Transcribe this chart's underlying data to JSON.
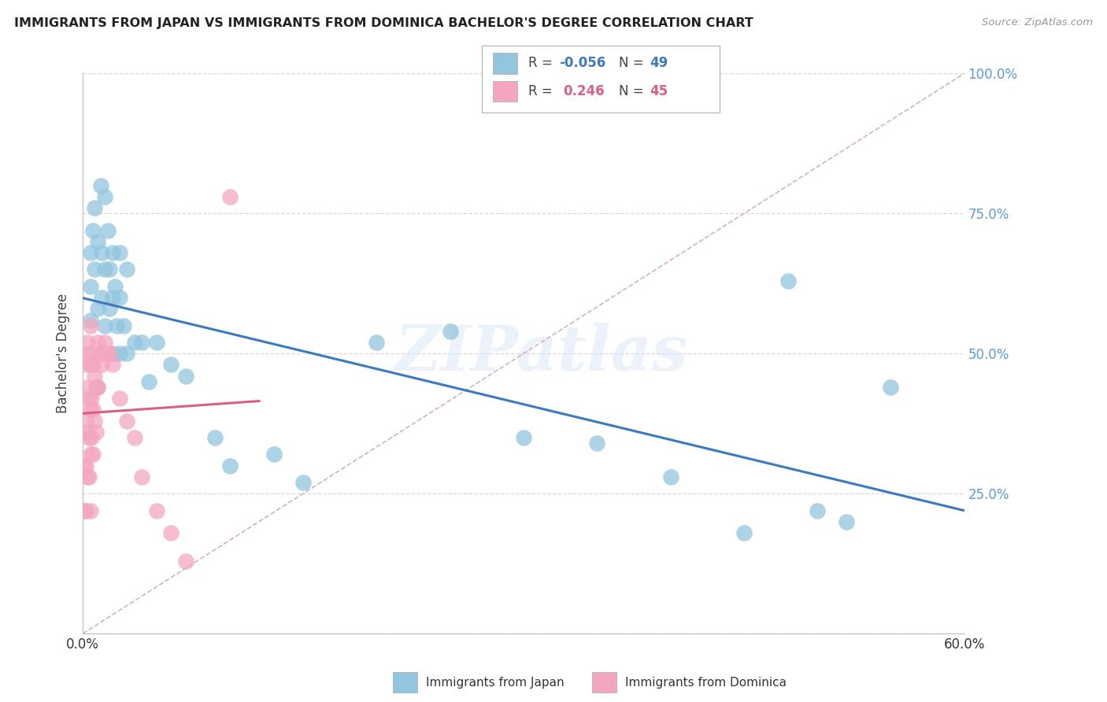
{
  "title": "IMMIGRANTS FROM JAPAN VS IMMIGRANTS FROM DOMINICA BACHELOR'S DEGREE CORRELATION CHART",
  "source": "Source: ZipAtlas.com",
  "ylabel": "Bachelor's Degree",
  "xlim": [
    0,
    0.6
  ],
  "ylim": [
    0,
    1.0
  ],
  "legend_japan_R": "-0.056",
  "legend_japan_N": "49",
  "legend_dominica_R": "0.246",
  "legend_dominica_N": "45",
  "japan_color": "#92c5de",
  "dominica_color": "#f4a6bf",
  "japan_line_color": "#3a7abf",
  "dominica_line_color": "#d95f8a",
  "diagonal_color": "#d8b0b8",
  "watermark": "ZIPatlas",
  "japan_x": [
    0.005,
    0.005,
    0.005,
    0.007,
    0.008,
    0.008,
    0.01,
    0.01,
    0.01,
    0.012,
    0.013,
    0.013,
    0.015,
    0.015,
    0.015,
    0.017,
    0.018,
    0.018,
    0.02,
    0.02,
    0.02,
    0.022,
    0.023,
    0.025,
    0.025,
    0.025,
    0.028,
    0.03,
    0.03,
    0.035,
    0.04,
    0.045,
    0.05,
    0.06,
    0.07,
    0.09,
    0.1,
    0.13,
    0.15,
    0.2,
    0.25,
    0.3,
    0.35,
    0.4,
    0.5,
    0.52,
    0.55,
    0.48,
    0.45
  ],
  "japan_y": [
    0.68,
    0.62,
    0.56,
    0.72,
    0.76,
    0.65,
    0.7,
    0.58,
    0.44,
    0.8,
    0.68,
    0.6,
    0.78,
    0.65,
    0.55,
    0.72,
    0.65,
    0.58,
    0.68,
    0.6,
    0.5,
    0.62,
    0.55,
    0.68,
    0.6,
    0.5,
    0.55,
    0.65,
    0.5,
    0.52,
    0.52,
    0.45,
    0.52,
    0.48,
    0.46,
    0.35,
    0.3,
    0.32,
    0.27,
    0.52,
    0.54,
    0.35,
    0.34,
    0.28,
    0.22,
    0.2,
    0.44,
    0.63,
    0.18
  ],
  "dominica_x": [
    0.001,
    0.001,
    0.002,
    0.002,
    0.002,
    0.002,
    0.003,
    0.003,
    0.003,
    0.003,
    0.004,
    0.004,
    0.004,
    0.004,
    0.005,
    0.005,
    0.005,
    0.005,
    0.005,
    0.006,
    0.006,
    0.006,
    0.007,
    0.007,
    0.007,
    0.008,
    0.008,
    0.009,
    0.009,
    0.01,
    0.01,
    0.012,
    0.013,
    0.015,
    0.016,
    0.018,
    0.02,
    0.025,
    0.03,
    0.035,
    0.04,
    0.05,
    0.06,
    0.07,
    0.1
  ],
  "dominica_y": [
    0.3,
    0.22,
    0.48,
    0.38,
    0.3,
    0.22,
    0.52,
    0.44,
    0.36,
    0.28,
    0.5,
    0.42,
    0.35,
    0.28,
    0.55,
    0.48,
    0.4,
    0.32,
    0.22,
    0.5,
    0.42,
    0.35,
    0.48,
    0.4,
    0.32,
    0.46,
    0.38,
    0.44,
    0.36,
    0.52,
    0.44,
    0.5,
    0.48,
    0.52,
    0.5,
    0.5,
    0.48,
    0.42,
    0.38,
    0.35,
    0.28,
    0.22,
    0.18,
    0.13,
    0.78
  ]
}
